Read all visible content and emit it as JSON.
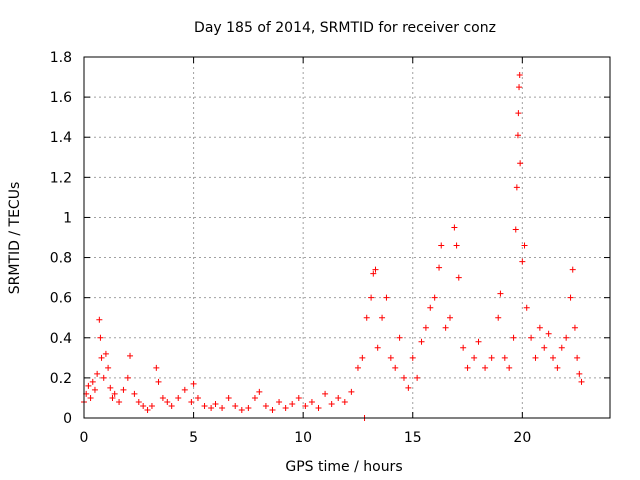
{
  "chart_data": {
    "type": "scatter",
    "title": "Day 185 of 2014, SRMTID for receiver conz",
    "xlabel": "GPS time / hours",
    "ylabel": "SRMTID / TECUs",
    "xlim": [
      0,
      24
    ],
    "ylim": [
      0,
      1.8
    ],
    "grid": true,
    "marker": "+",
    "color": "#ff0000",
    "x_ticks": [
      0,
      5,
      10,
      15,
      20
    ],
    "x_tick_labels": [
      "0",
      "5",
      "10",
      "15",
      "20"
    ],
    "y_ticks": [
      0,
      0.2,
      0.4,
      0.6,
      0.8,
      1.0,
      1.2,
      1.4,
      1.6,
      1.8
    ],
    "y_tick_labels": [
      "0",
      "0.2",
      "0.4",
      "0.6",
      "0.8",
      "1",
      "1.2",
      "1.4",
      "1.6",
      "1.8"
    ],
    "series": [
      {
        "name": "SRMTID",
        "points": [
          [
            0.0,
            0.08
          ],
          [
            0.1,
            0.12
          ],
          [
            0.2,
            0.16
          ],
          [
            0.3,
            0.1
          ],
          [
            0.4,
            0.18
          ],
          [
            0.5,
            0.14
          ],
          [
            0.6,
            0.22
          ],
          [
            0.7,
            0.49
          ],
          [
            0.75,
            0.4
          ],
          [
            0.8,
            0.3
          ],
          [
            0.9,
            0.2
          ],
          [
            1.0,
            0.32
          ],
          [
            1.1,
            0.25
          ],
          [
            1.2,
            0.15
          ],
          [
            1.3,
            0.1
          ],
          [
            1.4,
            0.12
          ],
          [
            1.6,
            0.08
          ],
          [
            1.8,
            0.14
          ],
          [
            2.0,
            0.2
          ],
          [
            2.1,
            0.31
          ],
          [
            2.3,
            0.12
          ],
          [
            2.5,
            0.08
          ],
          [
            2.7,
            0.06
          ],
          [
            2.9,
            0.04
          ],
          [
            3.1,
            0.06
          ],
          [
            3.3,
            0.25
          ],
          [
            3.4,
            0.18
          ],
          [
            3.6,
            0.1
          ],
          [
            3.8,
            0.08
          ],
          [
            4.0,
            0.06
          ],
          [
            4.3,
            0.1
          ],
          [
            4.6,
            0.14
          ],
          [
            4.9,
            0.08
          ],
          [
            5.0,
            0.17
          ],
          [
            5.2,
            0.1
          ],
          [
            5.5,
            0.06
          ],
          [
            5.8,
            0.05
          ],
          [
            6.0,
            0.07
          ],
          [
            6.3,
            0.05
          ],
          [
            6.6,
            0.1
          ],
          [
            6.9,
            0.06
          ],
          [
            7.2,
            0.04
          ],
          [
            7.5,
            0.05
          ],
          [
            7.8,
            0.1
          ],
          [
            8.0,
            0.13
          ],
          [
            8.3,
            0.06
          ],
          [
            8.6,
            0.04
          ],
          [
            8.9,
            0.08
          ],
          [
            9.2,
            0.05
          ],
          [
            9.5,
            0.07
          ],
          [
            9.8,
            0.1
          ],
          [
            10.1,
            0.06
          ],
          [
            10.4,
            0.08
          ],
          [
            10.7,
            0.05
          ],
          [
            11.0,
            0.12
          ],
          [
            11.3,
            0.07
          ],
          [
            11.6,
            0.1
          ],
          [
            11.9,
            0.08
          ],
          [
            12.2,
            0.13
          ],
          [
            12.5,
            0.25
          ],
          [
            12.7,
            0.3
          ],
          [
            12.8,
            0.0
          ],
          [
            12.9,
            0.5
          ],
          [
            13.1,
            0.6
          ],
          [
            13.2,
            0.72
          ],
          [
            13.3,
            0.74
          ],
          [
            13.4,
            0.35
          ],
          [
            13.6,
            0.5
          ],
          [
            13.8,
            0.6
          ],
          [
            14.0,
            0.3
          ],
          [
            14.2,
            0.25
          ],
          [
            14.4,
            0.4
          ],
          [
            14.6,
            0.2
          ],
          [
            14.8,
            0.15
          ],
          [
            15.0,
            0.3
          ],
          [
            15.2,
            0.2
          ],
          [
            15.4,
            0.38
          ],
          [
            15.6,
            0.45
          ],
          [
            15.8,
            0.55
          ],
          [
            16.0,
            0.6
          ],
          [
            16.2,
            0.75
          ],
          [
            16.3,
            0.86
          ],
          [
            16.5,
            0.45
          ],
          [
            16.7,
            0.5
          ],
          [
            16.9,
            0.95
          ],
          [
            17.0,
            0.86
          ],
          [
            17.1,
            0.7
          ],
          [
            17.3,
            0.35
          ],
          [
            17.5,
            0.25
          ],
          [
            17.8,
            0.3
          ],
          [
            18.0,
            0.38
          ],
          [
            18.3,
            0.25
          ],
          [
            18.6,
            0.3
          ],
          [
            18.9,
            0.5
          ],
          [
            19.0,
            0.62
          ],
          [
            19.2,
            0.3
          ],
          [
            19.4,
            0.25
          ],
          [
            19.6,
            0.4
          ],
          [
            19.7,
            0.94
          ],
          [
            19.75,
            1.15
          ],
          [
            19.8,
            1.41
          ],
          [
            19.82,
            1.52
          ],
          [
            19.85,
            1.65
          ],
          [
            19.88,
            1.71
          ],
          [
            19.9,
            1.27
          ],
          [
            20.0,
            0.78
          ],
          [
            20.1,
            0.86
          ],
          [
            20.2,
            0.55
          ],
          [
            20.4,
            0.4
          ],
          [
            20.6,
            0.3
          ],
          [
            20.8,
            0.45
          ],
          [
            21.0,
            0.35
          ],
          [
            21.2,
            0.42
          ],
          [
            21.4,
            0.3
          ],
          [
            21.6,
            0.25
          ],
          [
            21.8,
            0.35
          ],
          [
            22.0,
            0.4
          ],
          [
            22.2,
            0.6
          ],
          [
            22.3,
            0.74
          ],
          [
            22.4,
            0.45
          ],
          [
            22.5,
            0.3
          ],
          [
            22.6,
            0.22
          ],
          [
            22.7,
            0.18
          ]
        ]
      }
    ]
  }
}
